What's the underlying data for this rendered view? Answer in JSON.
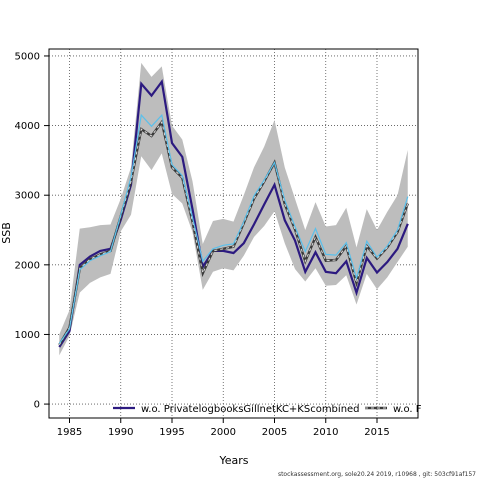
{
  "chart_data": {
    "type": "line",
    "xlabel": "Years",
    "ylabel": "SSB",
    "xlim": [
      1983,
      2019
    ],
    "ylim": [
      -200,
      5100
    ],
    "x_ticks": [
      1985,
      1990,
      1995,
      2000,
      2005,
      2010,
      2015
    ],
    "y_ticks": [
      0,
      1000,
      2000,
      3000,
      4000,
      5000
    ],
    "grid": true,
    "legend_position": "bottom",
    "x": [
      1984,
      1985,
      1986,
      1987,
      1988,
      1989,
      1990,
      1991,
      1992,
      1993,
      1994,
      1995,
      1996,
      1997,
      1998,
      1999,
      2000,
      2001,
      2002,
      2003,
      2004,
      2005,
      2006,
      2007,
      2008,
      2009,
      2010,
      2011,
      2012,
      2013,
      2014,
      2015,
      2016,
      2017,
      2018
    ],
    "band": {
      "color": "#bdbdbd",
      "upper": [
        1000,
        1350,
        2520,
        2540,
        2570,
        2580,
        2950,
        3400,
        4900,
        4700,
        4850,
        4000,
        3800,
        3200,
        2300,
        2630,
        2660,
        2620,
        3000,
        3400,
        3700,
        4080,
        3400,
        2950,
        2500,
        2900,
        2550,
        2570,
        2820,
        2250,
        2800,
        2500,
        2760,
        3000,
        3650
      ],
      "lower": [
        700,
        980,
        1600,
        1740,
        1820,
        1870,
        2480,
        2720,
        3560,
        3360,
        3600,
        3020,
        2880,
        2470,
        1640,
        1900,
        1950,
        1920,
        2130,
        2400,
        2560,
        2770,
        2310,
        1940,
        1760,
        1950,
        1700,
        1710,
        1850,
        1430,
        1870,
        1650,
        1820,
        2040,
        2260
      ]
    },
    "series": [
      {
        "name": "w.o. PrivatelogbooksGillnetKC+KScombined",
        "color": "#2c1a80",
        "values": [
          820,
          1050,
          2000,
          2120,
          2200,
          2230,
          2650,
          3150,
          4600,
          4430,
          4630,
          3750,
          3550,
          2800,
          1970,
          2200,
          2200,
          2170,
          2310,
          2580,
          2870,
          3150,
          2640,
          2350,
          1900,
          2180,
          1900,
          1880,
          2050,
          1600,
          2100,
          1890,
          2040,
          2230,
          2590
        ]
      },
      {
        "name": "w.o. F",
        "color": "#222222",
        "dashed": true,
        "values": [
          850,
          1100,
          1950,
          2080,
          2150,
          2200,
          2700,
          3200,
          3950,
          3850,
          4050,
          3400,
          3250,
          2620,
          1880,
          2200,
          2230,
          2260,
          2600,
          2950,
          3200,
          3470,
          2870,
          2510,
          2050,
          2400,
          2060,
          2070,
          2270,
          1740,
          2270,
          2090,
          2250,
          2470,
          2880
        ]
      },
      {
        "name": "",
        "color": "#5bc0eb",
        "values": [
          870,
          1080,
          1930,
          2060,
          2130,
          2190,
          2720,
          3260,
          4150,
          3990,
          4150,
          3440,
          3280,
          2680,
          2050,
          2230,
          2280,
          2300,
          2620,
          2990,
          3220,
          3470,
          2930,
          2550,
          2190,
          2520,
          2150,
          2140,
          2320,
          1810,
          2340,
          2110,
          2270,
          2500,
          2980
        ]
      }
    ]
  },
  "footer_text": "stockassessment.org, sole20.24 2019, r10968 , git: 503cf91af157"
}
